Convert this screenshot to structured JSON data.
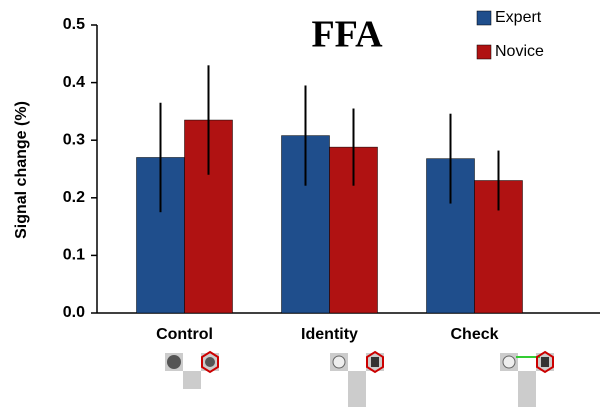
{
  "chart_data": {
    "type": "bar",
    "title": "FFA",
    "y_label": "Signal change (%)",
    "categories": [
      "Control",
      "Identity",
      "Check"
    ],
    "series": [
      {
        "name": "Expert",
        "color": "#1f4e8c",
        "values": [
          0.27,
          0.308,
          0.268
        ],
        "errors": [
          0.095,
          0.087,
          0.078
        ]
      },
      {
        "name": "Novice",
        "color": "#b01212",
        "values": [
          0.335,
          0.288,
          0.23
        ],
        "errors": [
          0.095,
          0.067,
          0.052
        ]
      }
    ],
    "ylim": [
      0,
      0.5
    ],
    "yticks": [
      {
        "value": 0,
        "label": "0.0"
      },
      0.1,
      0.2,
      0.3,
      0.4,
      0.5
    ],
    "legend": "top-right",
    "grid": false
  }
}
